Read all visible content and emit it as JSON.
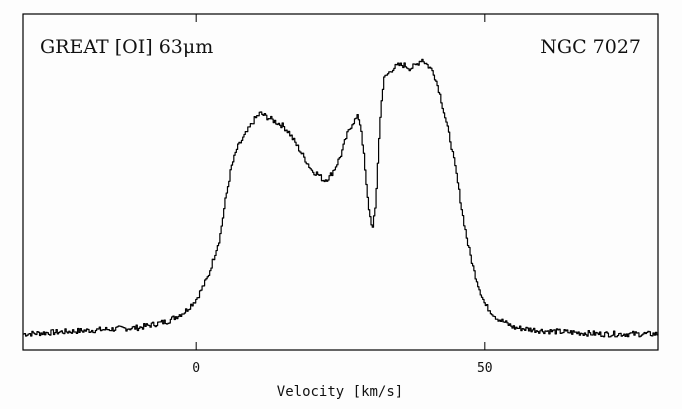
{
  "chart_data": {
    "type": "line",
    "title_left": "GREAT [OI] 63μm",
    "title_right": "NGC 7027",
    "xlabel": "Velocity [km/s]",
    "ylabel": "",
    "xlim": [
      -30,
      80
    ],
    "ylim": [
      -0.05,
      1.0
    ],
    "grid": false,
    "x_ticks": [
      0,
      50
    ],
    "x_tick_labels": [
      "0",
      "50"
    ],
    "series": [
      {
        "x": [
          -30,
          -20,
          -10,
          -5,
          -2,
          0,
          2,
          4,
          5,
          6,
          7,
          8,
          9,
          10,
          11,
          12,
          13,
          14,
          15,
          16,
          17,
          18,
          19,
          20,
          21,
          22,
          23,
          24,
          25,
          26,
          27,
          28,
          28.5,
          29,
          29.5,
          30,
          30.5,
          31,
          31.5,
          32,
          32.5,
          33,
          34,
          35,
          36,
          37,
          38,
          39,
          40,
          41,
          42,
          43,
          44,
          45,
          46,
          47,
          48,
          49,
          50,
          52,
          55,
          60,
          70,
          80
        ],
        "y": [
          0.0,
          0.01,
          0.02,
          0.04,
          0.07,
          0.11,
          0.18,
          0.3,
          0.42,
          0.52,
          0.58,
          0.61,
          0.64,
          0.67,
          0.69,
          0.68,
          0.67,
          0.66,
          0.65,
          0.63,
          0.6,
          0.57,
          0.54,
          0.51,
          0.5,
          0.48,
          0.49,
          0.52,
          0.56,
          0.62,
          0.66,
          0.68,
          0.64,
          0.55,
          0.44,
          0.37,
          0.33,
          0.4,
          0.58,
          0.73,
          0.8,
          0.81,
          0.83,
          0.84,
          0.84,
          0.83,
          0.84,
          0.86,
          0.84,
          0.82,
          0.76,
          0.68,
          0.6,
          0.5,
          0.38,
          0.28,
          0.2,
          0.14,
          0.09,
          0.05,
          0.02,
          0.01,
          0.0,
          0.0
        ]
      }
    ]
  }
}
